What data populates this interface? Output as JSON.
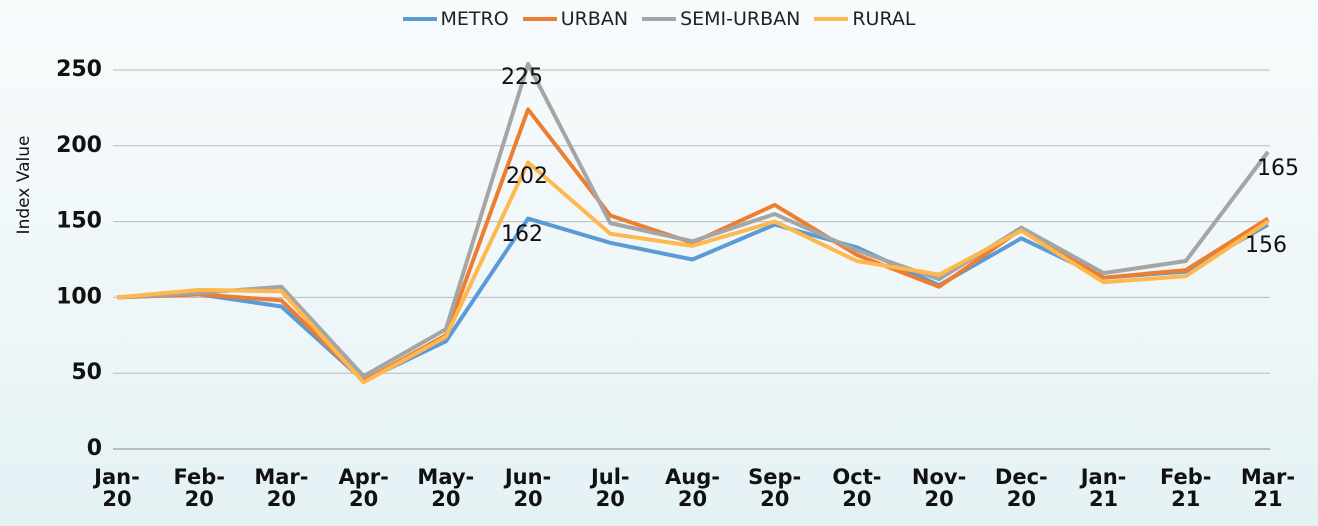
{
  "chart_data": {
    "type": "line",
    "y_label": "Index Value",
    "categories": [
      "Jan-20",
      "Feb-20",
      "Mar-20",
      "Apr-20",
      "May-20",
      "Jun-20",
      "Jul-20",
      "Aug-20",
      "Sep-20",
      "Oct-20",
      "Nov-20",
      "Dec-20",
      "Jan-21",
      "Feb-21",
      "Mar-21"
    ],
    "series": [
      {
        "name": "METRO",
        "color": "#5b9bd5",
        "values": [
          100,
          102,
          94,
          45,
          71,
          152,
          136,
          125,
          148,
          133,
          108,
          139,
          113,
          117,
          148
        ]
      },
      {
        "name": "URBAN",
        "color": "#ed7d31",
        "values": [
          100,
          102,
          98,
          45,
          75,
          224,
          154,
          136,
          161,
          128,
          107,
          145,
          113,
          118,
          152
        ]
      },
      {
        "name": "SEMI-URBAN",
        "color": "#a5a5a5",
        "values": [
          100,
          103,
          107,
          48,
          79,
          254,
          149,
          137,
          155,
          131,
          112,
          146,
          116,
          124,
          196
        ]
      },
      {
        "name": "RURAL",
        "color": "#ffb84d",
        "values": [
          100,
          105,
          104,
          44,
          74,
          189,
          142,
          134,
          150,
          124,
          115,
          144,
          110,
          114,
          150
        ]
      }
    ],
    "annotations": [
      "225",
      "202",
      "162",
      "165",
      "156"
    ],
    "ylim": [
      0,
      250
    ],
    "yticks": [
      0,
      50,
      100,
      150,
      200,
      250
    ],
    "grid": true
  }
}
